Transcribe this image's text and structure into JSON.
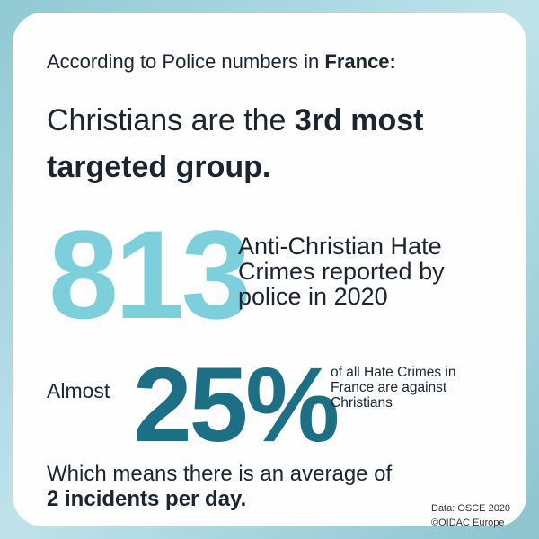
{
  "intro": {
    "text": "According to Police numbers in",
    "bold": "France:"
  },
  "headline": {
    "text": "Christians are the",
    "bold_lines": [
      "3rd most",
      "targeted group."
    ]
  },
  "stat1": {
    "number": "813",
    "description_lines": [
      "Anti-Christian Hate",
      "Crimes reported by",
      "police in 2020"
    ]
  },
  "stat2": {
    "prefix": "Almost",
    "number": "25%",
    "description_lines": [
      "of all Hate Crimes in",
      "France are against",
      "Christians"
    ]
  },
  "summary": {
    "text": "Which means there is an average of",
    "bold": "2 incidents per day."
  },
  "source": [
    "Data: OSCE 2020",
    "©OIDAC Europe"
  ]
}
